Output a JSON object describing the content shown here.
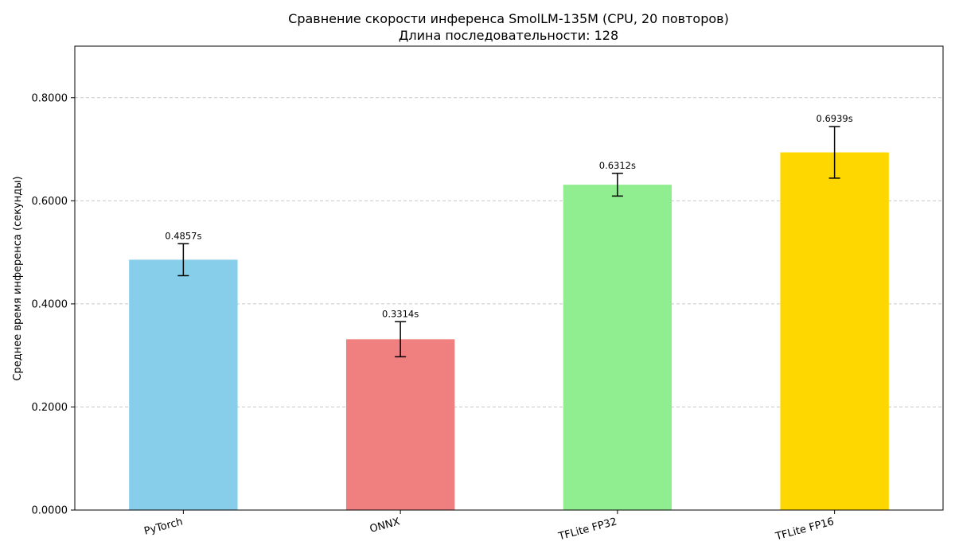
{
  "chart_data": {
    "type": "bar",
    "title": "Сравнение скорости инференса SmolLM-135M (CPU, 20 повторов)",
    "subtitle": "Длина последовательности: 128",
    "xlabel": "",
    "ylabel": "Среднее время инференса (секунды)",
    "ylim": [
      0,
      0.9
    ],
    "yticks": [
      0,
      0.2,
      0.4,
      0.6,
      0.8
    ],
    "ytick_labels": [
      "0.0000",
      "0.2000",
      "0.4000",
      "0.6000",
      "0.8000"
    ],
    "grid": "y-dashed",
    "categories": [
      "PyTorch",
      "ONNX",
      "TFLite FP32",
      "TFLite FP16"
    ],
    "values": [
      0.4857,
      0.3314,
      0.6312,
      0.6939
    ],
    "errors": [
      0.031,
      0.034,
      0.022,
      0.05
    ],
    "value_labels": [
      "0.4857s",
      "0.3314s",
      "0.6312s",
      "0.6939s"
    ],
    "colors": [
      "#87ceeb",
      "#f08080",
      "#90ee90",
      "#ffd700"
    ]
  }
}
